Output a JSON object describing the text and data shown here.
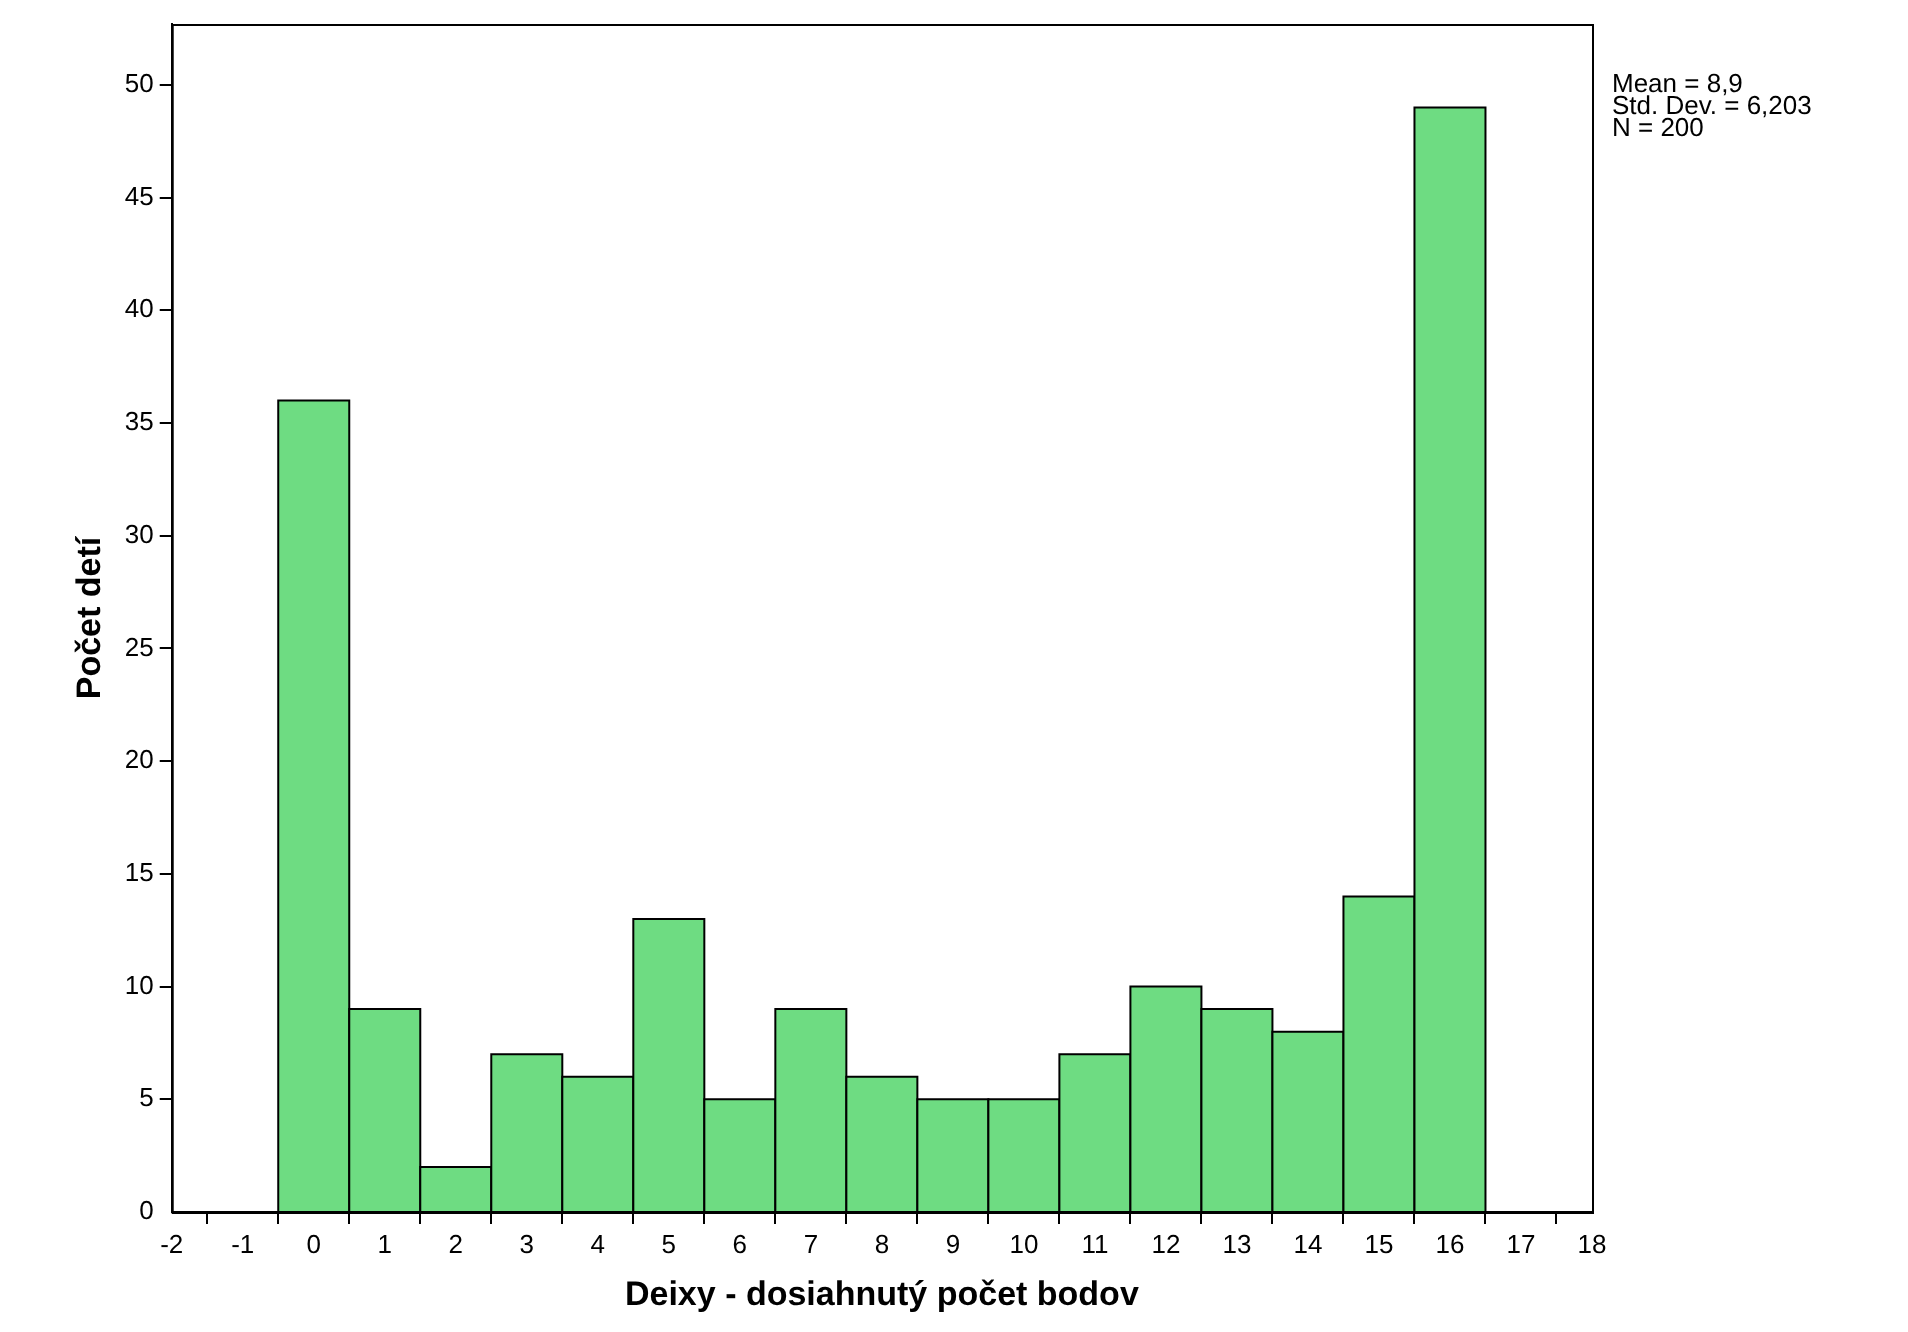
{
  "chart_data": {
    "type": "histogram",
    "xlabel": "Deixy - dosiahnutý počet bodov",
    "ylabel": "Počet detí",
    "bins": [
      -0.5,
      0.5,
      1.5,
      2.5,
      3.5,
      4.5,
      5.5,
      6.5,
      7.5,
      8.5,
      9.5,
      10.5,
      11.5,
      12.5,
      13.5,
      14.5,
      15.5,
      16.5
    ],
    "values": [
      36,
      9,
      2,
      7,
      6,
      13,
      5,
      9,
      6,
      5,
      5,
      7,
      10,
      9,
      8,
      14,
      49
    ],
    "color": "#6edc82",
    "xlim": [
      -2,
      18
    ],
    "xticks": [
      -2,
      -1,
      0,
      1,
      2,
      3,
      4,
      5,
      6,
      7,
      8,
      9,
      10,
      11,
      12,
      13,
      14,
      15,
      16,
      17,
      18
    ],
    "ylim": [
      0,
      52.7
    ],
    "yticks": [
      0,
      5,
      10,
      15,
      20,
      25,
      30,
      35,
      40,
      45,
      50
    ],
    "annotations": [
      "Mean = 8,9",
      "Std. Dev. = 6,203",
      "N = 200"
    ]
  }
}
